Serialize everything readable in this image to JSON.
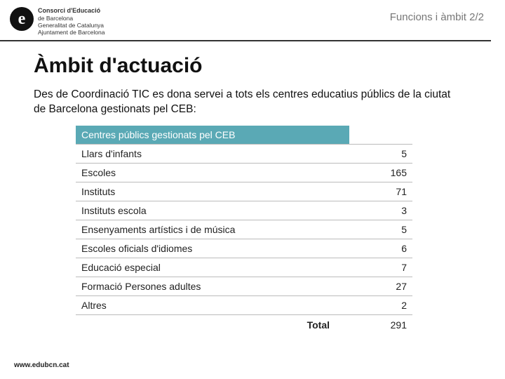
{
  "header": {
    "logo_letter": "e",
    "logo_lines": {
      "l1": "Consorci d'Educació",
      "l2": "de Barcelona",
      "l3": "Generalitat de Catalunya",
      "l4": "Ajuntament de Barcelona"
    },
    "breadcrumb": "Funcions i àmbit 2/2"
  },
  "title": "Àmbit d'actuació",
  "intro": "Des de Coordinació TIC es dona servei a tots els centres educatius públics de la ciutat de Barcelona gestionats pel CEB:",
  "table": {
    "header_label": "Centres públics gestionats pel CEB",
    "header_bg": "#5aa9b5",
    "header_fg": "#ffffff",
    "border_color": "#bbbbbb",
    "label_fontsize": 14,
    "columns": [
      "label",
      "value"
    ],
    "rows": [
      {
        "label": "Llars d'infants",
        "value": "5"
      },
      {
        "label": "Escoles",
        "value": "165"
      },
      {
        "label": "Instituts",
        "value": "71"
      },
      {
        "label": "Instituts escola",
        "value": "3"
      },
      {
        "label": "Ensenyaments artístics i de música",
        "value": "5"
      },
      {
        "label": "Escoles oficials d'idiomes",
        "value": "6"
      },
      {
        "label": "Educació especial",
        "value": "7"
      },
      {
        "label": "Formació Persones adultes",
        "value": "27"
      },
      {
        "label": "Altres",
        "value": "2"
      }
    ],
    "total_label": "Total",
    "total_value": "291"
  },
  "footer": "www.edubcn.cat"
}
